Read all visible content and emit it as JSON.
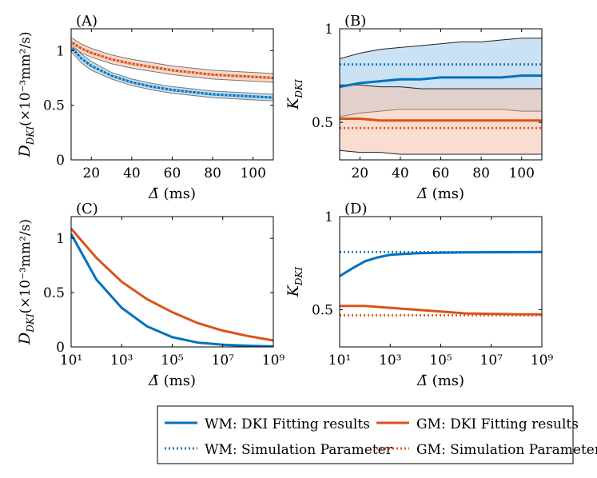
{
  "colors": {
    "wm": "#0072BD",
    "gm": "#D95319",
    "wm_band": "#9ECAE9",
    "gm_band": "#F4C1AA",
    "overlap": "#B8A9A4",
    "axis": "#000000",
    "gray_line": "#777777"
  },
  "legend": {
    "wm_fit": "WM: DKI Fitting results",
    "gm_fit": "GM: DKI Fitting results",
    "wm_sim": "WM: Simulation Parameter",
    "gm_sim": "GM: Simulation Parameter"
  },
  "chart_data": [
    {
      "panel": "A",
      "type": "line",
      "label": "(A)",
      "ylabel_main": "D",
      "ylabel_sub": "DKI",
      "ylabel_unit": "(×10⁻³mm²/s)",
      "xlabel_main": "Δ̄",
      "xlabel_unit": " (ms)",
      "xscale": "linear",
      "xlim": [
        10,
        110
      ],
      "ylim": [
        0,
        1.2
      ],
      "xticks": [
        20,
        40,
        60,
        80,
        100
      ],
      "xtick_labels": [
        "20",
        "40",
        "60",
        "80",
        "100"
      ],
      "yticks": [
        0,
        0.5,
        1
      ],
      "ytick_labels": [
        "0",
        "0.5",
        "1"
      ],
      "series": [
        {
          "name": "WM: DKI Fitting results",
          "color": "wm",
          "style": "solid",
          "x": [
            10,
            15,
            20,
            30,
            40,
            50,
            60,
            70,
            80,
            90,
            100,
            110
          ],
          "y": [
            1.03,
            0.93,
            0.86,
            0.77,
            0.71,
            0.67,
            0.64,
            0.62,
            0.6,
            0.59,
            0.58,
            0.57
          ],
          "band_upper": [
            1.07,
            0.97,
            0.9,
            0.8,
            0.74,
            0.7,
            0.67,
            0.65,
            0.63,
            0.62,
            0.61,
            0.6
          ],
          "band_lower": [
            0.99,
            0.89,
            0.82,
            0.74,
            0.68,
            0.64,
            0.61,
            0.59,
            0.57,
            0.56,
            0.55,
            0.54
          ]
        },
        {
          "name": "GM: DKI Fitting results",
          "color": "gm",
          "style": "solid",
          "x": [
            10,
            15,
            20,
            30,
            40,
            50,
            60,
            70,
            80,
            90,
            100,
            110
          ],
          "y": [
            1.08,
            1.02,
            0.98,
            0.92,
            0.88,
            0.85,
            0.82,
            0.8,
            0.78,
            0.77,
            0.76,
            0.75
          ],
          "band_upper": [
            1.12,
            1.06,
            1.02,
            0.96,
            0.92,
            0.89,
            0.86,
            0.84,
            0.82,
            0.81,
            0.8,
            0.79
          ],
          "band_lower": [
            1.04,
            0.98,
            0.94,
            0.88,
            0.84,
            0.81,
            0.78,
            0.76,
            0.74,
            0.73,
            0.72,
            0.71
          ]
        },
        {
          "name": "WM: Simulation Parameter",
          "color": "wm_band",
          "style": "dotted",
          "x": [
            10,
            15,
            20,
            30,
            40,
            50,
            60,
            70,
            80,
            90,
            100,
            110
          ],
          "y": [
            1.03,
            0.93,
            0.86,
            0.77,
            0.71,
            0.67,
            0.64,
            0.62,
            0.6,
            0.59,
            0.58,
            0.57
          ]
        },
        {
          "name": "GM: Simulation Parameter",
          "color": "gm_band",
          "style": "dotted",
          "x": [
            10,
            15,
            20,
            30,
            40,
            50,
            60,
            70,
            80,
            90,
            100,
            110
          ],
          "y": [
            1.08,
            1.02,
            0.98,
            0.92,
            0.88,
            0.85,
            0.82,
            0.8,
            0.78,
            0.77,
            0.76,
            0.75
          ]
        }
      ]
    },
    {
      "panel": "B",
      "type": "line",
      "label": "(B)",
      "ylabel_main": "K",
      "ylabel_sub": "DKI",
      "ylabel_unit": "",
      "xlabel_main": "Δ̄",
      "xlabel_unit": " (ms)",
      "xscale": "linear",
      "xlim": [
        10,
        110
      ],
      "ylim": [
        0.3,
        1.0
      ],
      "xticks": [
        20,
        40,
        60,
        80,
        100
      ],
      "xtick_labels": [
        "20",
        "40",
        "60",
        "80",
        "100"
      ],
      "yticks": [
        0.5,
        1
      ],
      "ytick_labels": [
        "0.5",
        "1"
      ],
      "series": [
        {
          "name": "WM: DKI Fitting results",
          "color": "wm",
          "style": "solid",
          "x": [
            10,
            20,
            30,
            40,
            50,
            60,
            70,
            80,
            90,
            100,
            110
          ],
          "y": [
            0.69,
            0.71,
            0.72,
            0.73,
            0.73,
            0.74,
            0.74,
            0.74,
            0.74,
            0.75,
            0.75
          ],
          "band_upper": [
            0.84,
            0.87,
            0.89,
            0.9,
            0.91,
            0.92,
            0.93,
            0.93,
            0.94,
            0.95,
            0.95
          ],
          "band_lower": [
            0.53,
            0.55,
            0.56,
            0.57,
            0.57,
            0.57,
            0.57,
            0.57,
            0.57,
            0.56,
            0.56
          ]
        },
        {
          "name": "GM: DKI Fitting results",
          "color": "gm",
          "style": "solid",
          "x": [
            10,
            20,
            30,
            40,
            50,
            60,
            70,
            80,
            90,
            100,
            110
          ],
          "y": [
            0.52,
            0.52,
            0.51,
            0.51,
            0.51,
            0.51,
            0.51,
            0.51,
            0.51,
            0.51,
            0.51
          ],
          "band_upper": [
            0.7,
            0.7,
            0.69,
            0.69,
            0.68,
            0.68,
            0.68,
            0.68,
            0.68,
            0.68,
            0.68
          ],
          "band_lower": [
            0.35,
            0.34,
            0.34,
            0.33,
            0.33,
            0.33,
            0.33,
            0.33,
            0.33,
            0.33,
            0.33
          ]
        },
        {
          "name": "WM: Simulation Parameter",
          "color": "wm",
          "style": "dotted",
          "x": [
            10,
            110
          ],
          "y": [
            0.81,
            0.81
          ]
        },
        {
          "name": "GM: Simulation Parameter",
          "color": "gm",
          "style": "dotted",
          "x": [
            10,
            110
          ],
          "y": [
            0.47,
            0.47
          ]
        }
      ]
    },
    {
      "panel": "C",
      "type": "line",
      "label": "(C)",
      "ylabel_main": "D",
      "ylabel_sub": "DKI",
      "ylabel_unit": "(×10⁻³mm²/s)",
      "xlabel_main": "Δ̄",
      "xlabel_unit": " (ms)",
      "xscale": "log",
      "xlim": [
        10,
        1000000000
      ],
      "ylim": [
        0,
        1.2
      ],
      "xticks": [
        10,
        1000,
        100000,
        10000000,
        1000000000
      ],
      "xtick_labels": [
        "10¹",
        "10³",
        "10⁵",
        "10⁷",
        "10⁹"
      ],
      "yticks": [
        0,
        0.5,
        1
      ],
      "ytick_labels": [
        "0",
        "0.5",
        "1"
      ],
      "series": [
        {
          "name": "WM: DKI Fitting results",
          "color": "wm",
          "style": "solid",
          "x": [
            10,
            100,
            1000,
            10000,
            100000,
            1000000,
            10000000,
            100000000,
            1000000000
          ],
          "y": [
            1.04,
            0.62,
            0.36,
            0.19,
            0.09,
            0.04,
            0.02,
            0.01,
            0.005
          ]
        },
        {
          "name": "GM: DKI Fitting results",
          "color": "gm",
          "style": "solid",
          "x": [
            10,
            100,
            1000,
            10000,
            100000,
            1000000,
            10000000,
            100000000,
            1000000000
          ],
          "y": [
            1.09,
            0.82,
            0.6,
            0.44,
            0.32,
            0.22,
            0.15,
            0.1,
            0.06
          ]
        }
      ]
    },
    {
      "panel": "D",
      "type": "line",
      "label": "(D)",
      "ylabel_main": "K",
      "ylabel_sub": "DKI",
      "ylabel_unit": "",
      "xlabel_main": "Δ̄",
      "xlabel_unit": " (ms)",
      "xscale": "log",
      "xlim": [
        10,
        1000000000
      ],
      "ylim": [
        0.3,
        1.0
      ],
      "xticks": [
        10,
        1000,
        100000,
        10000000,
        1000000000
      ],
      "xtick_labels": [
        "10¹",
        "10³",
        "10⁵",
        "10⁷",
        "10⁹"
      ],
      "yticks": [
        0.5,
        1
      ],
      "ytick_labels": [
        "0.5",
        "1"
      ],
      "series": [
        {
          "name": "WM: DKI Fitting results",
          "color": "wm",
          "style": "solid",
          "x": [
            10,
            30,
            100,
            300,
            1000,
            10000,
            100000,
            1000000,
            1000000000
          ],
          "y": [
            0.68,
            0.72,
            0.76,
            0.78,
            0.795,
            0.803,
            0.806,
            0.808,
            0.81
          ]
        },
        {
          "name": "GM: DKI Fitting results",
          "color": "gm",
          "style": "solid",
          "x": [
            10,
            100,
            1000,
            10000,
            100000,
            1000000,
            100000000,
            1000000000
          ],
          "y": [
            0.52,
            0.52,
            0.51,
            0.5,
            0.49,
            0.48,
            0.475,
            0.475
          ]
        },
        {
          "name": "WM: Simulation Parameter",
          "color": "wm",
          "style": "dotted",
          "x": [
            10,
            1000000000
          ],
          "y": [
            0.81,
            0.81
          ]
        },
        {
          "name": "GM: Simulation Parameter",
          "color": "gm",
          "style": "dotted",
          "x": [
            10,
            1000000000
          ],
          "y": [
            0.47,
            0.47
          ]
        }
      ]
    }
  ]
}
